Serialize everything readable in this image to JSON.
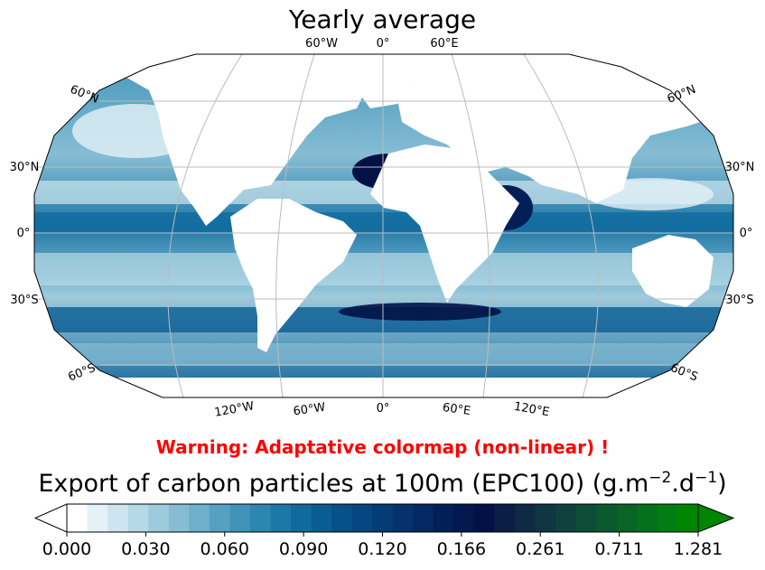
{
  "title": "Yearly average",
  "warning": "Warning: Adaptative colormap (non-linear) !",
  "colorbar": {
    "title_main": "Export of carbon particles at 100m (EPC100) (g.m",
    "title_exp1": "−2",
    "title_mid": ".d",
    "title_exp2": "−1",
    "title_end": ")",
    "tick_labels": [
      "0.000",
      "0.030",
      "0.060",
      "0.090",
      "0.120",
      "0.166",
      "0.261",
      "0.711",
      "1.281"
    ],
    "extend": "both",
    "colors": [
      "#ffffff",
      "#e4f1f6",
      "#cde5ee",
      "#b5d9e6",
      "#9dcbdd",
      "#86bdd4",
      "#6eafcb",
      "#56a1c2",
      "#3f93b9",
      "#2b86b0",
      "#1c78a7",
      "#106a9e",
      "#0a5d94",
      "#07518a",
      "#064680",
      "#053b76",
      "#05316c",
      "#042862",
      "#031f58",
      "#02184f",
      "#021246",
      "#0a1e46",
      "#0e2a44",
      "#0f3642",
      "#0f423d",
      "#0e4d36",
      "#0b592e",
      "#086526",
      "#05711d",
      "#027d13",
      "#008500"
    ]
  },
  "map": {
    "projection": "Robinson",
    "meridians_top": [
      "60°W",
      "0°",
      "60°E"
    ],
    "meridians_bottom": [
      "120°W",
      "60°W",
      "0°",
      "60°E",
      "120°E"
    ],
    "parallels_left": [
      "60°N",
      "30°N",
      "0°",
      "30°S",
      "60°S"
    ],
    "parallels_right": [
      "60°N",
      "30°N",
      "0°",
      "30°S",
      "60°S"
    ],
    "gridline_color": "#bbbbbb",
    "land_color": "#ffffff",
    "ocean_low_color": "#e4f1f6",
    "ocean_mid_color": "#4a9ac0",
    "ocean_high_color": "#031f58"
  }
}
